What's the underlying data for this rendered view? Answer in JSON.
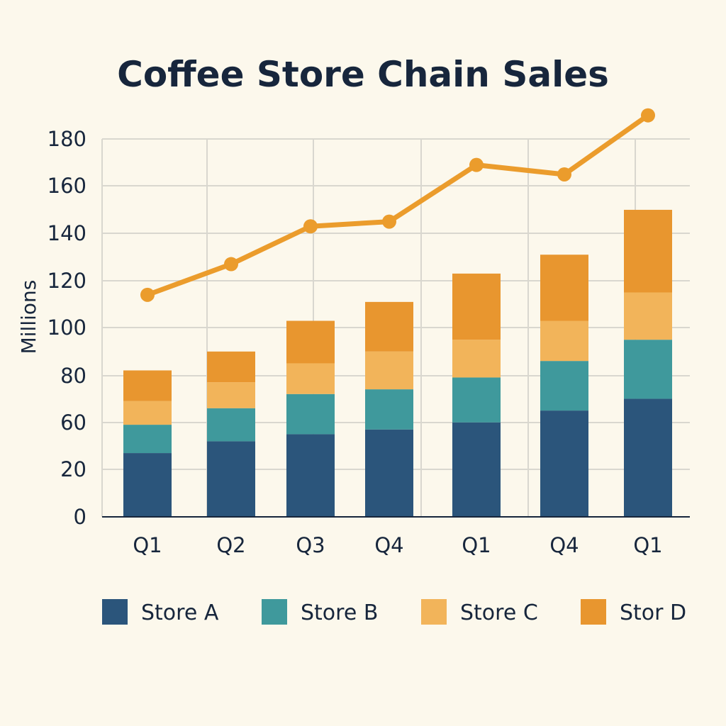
{
  "chart_data": {
    "type": "bar",
    "stacked": true,
    "title": "Coffee Store Chain Sales",
    "xlabel": "",
    "ylabel": "Millions",
    "categories": [
      "Q1",
      "Q2",
      "Q3",
      "Q4",
      "Q1",
      "Q4",
      "Q1"
    ],
    "yticks": [
      0,
      20,
      60,
      80,
      100,
      120,
      140,
      160,
      180
    ],
    "series": [
      {
        "name": "Store A",
        "color": "#2b557b",
        "values": [
          27,
          32,
          35,
          37,
          40,
          45,
          50
        ]
      },
      {
        "name": "Store B",
        "color": "#3f999c",
        "values": [
          12,
          14,
          17,
          17,
          19,
          21,
          25
        ]
      },
      {
        "name": "Store C",
        "color": "#f2b45a",
        "values": [
          10,
          11,
          13,
          16,
          16,
          17,
          20
        ]
      },
      {
        "name": "Stor D",
        "color": "#e8962f",
        "values": [
          13,
          13,
          18,
          21,
          28,
          28,
          35
        ]
      }
    ],
    "line": {
      "color": "#eb9c2c",
      "values": [
        94,
        107,
        123,
        125,
        149,
        145,
        170
      ]
    },
    "grid": true,
    "legend_position": "bottom"
  }
}
